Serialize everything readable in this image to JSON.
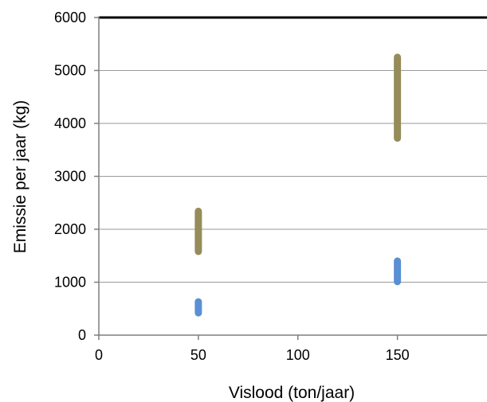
{
  "chart_data": {
    "type": "range",
    "title": "",
    "xlabel": "Vislood (ton/jaar)",
    "ylabel": "Emissie per jaar (kg)",
    "xlim": [
      0,
      195
    ],
    "ylim": [
      0,
      6000
    ],
    "xticks": [
      0,
      50,
      100,
      150
    ],
    "yticks": [
      0,
      1000,
      2000,
      3000,
      4000,
      5000,
      6000
    ],
    "grid": "horizontal",
    "legend": "none",
    "series": [
      {
        "color": "#958c5a",
        "ranges": [
          {
            "x": 50,
            "low": 1580,
            "high": 2340
          },
          {
            "x": 150,
            "low": 3720,
            "high": 5250
          }
        ]
      },
      {
        "color": "#5b8fd4",
        "ranges": [
          {
            "x": 50,
            "low": 420,
            "high": 630
          },
          {
            "x": 150,
            "low": 1010,
            "high": 1400
          }
        ]
      }
    ]
  }
}
